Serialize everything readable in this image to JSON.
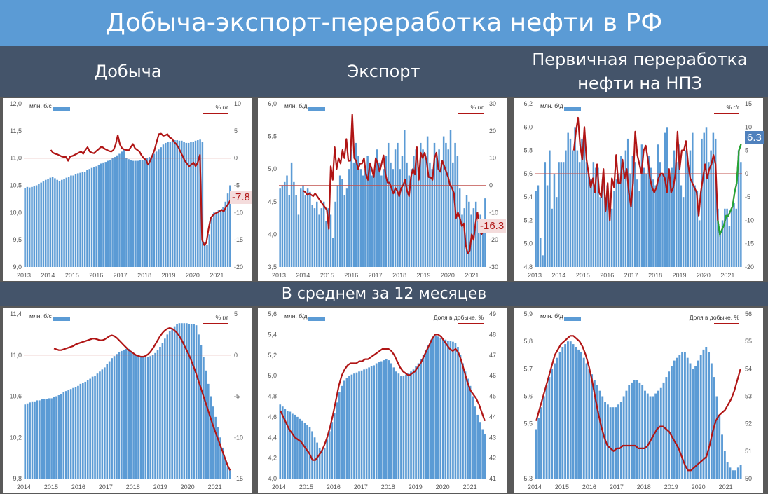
{
  "page_title": "Добыча-экспорт-переработка нефти в РФ",
  "column_titles": [
    "Добыча",
    "Экспорт",
    "Первичная переработка нефти на НПЗ"
  ],
  "band_title": "В среднем за 12 месяцев",
  "colors": {
    "title_bg": "#5b9bd5",
    "header_bg": "#44546a",
    "bars": "#5b9bd5",
    "line": "#b01515",
    "line2": "#21a838",
    "callout_red_bg": "#f4dcdc",
    "callout_blue_bg": "#4f81bd"
  },
  "chart_data": [
    {
      "id": "c1",
      "type": "bar+line",
      "left_label": "млн. б/с",
      "right_label": "% г/г",
      "x_ticks": [
        "2013",
        "2014",
        "2015",
        "2016",
        "2017",
        "2018",
        "2019",
        "2020",
        "2021"
      ],
      "ylim": [
        9.0,
        12.0
      ],
      "y_ticks": [
        9.0,
        9.5,
        10.0,
        10.5,
        11.0,
        11.5,
        12.0
      ],
      "y2lim": [
        -20,
        10
      ],
      "y2_ticks": [
        -20,
        -15,
        -10,
        -5,
        0,
        5,
        10
      ],
      "callout": "-7.8",
      "callout_style": "red",
      "bars": [
        10.45,
        10.47,
        10.46,
        10.47,
        10.48,
        10.5,
        10.52,
        10.55,
        10.57,
        10.6,
        10.62,
        10.64,
        10.65,
        10.63,
        10.6,
        10.58,
        10.6,
        10.62,
        10.64,
        10.66,
        10.68,
        10.68,
        10.7,
        10.72,
        10.73,
        10.74,
        10.75,
        10.78,
        10.8,
        10.82,
        10.84,
        10.85,
        10.88,
        10.9,
        10.92,
        10.93,
        10.95,
        10.97,
        11.0,
        11.02,
        11.05,
        11.08,
        11.12,
        11.15,
        11.0,
        10.98,
        10.96,
        10.95,
        10.95,
        10.95,
        10.96,
        10.97,
        10.98,
        11.0,
        11.02,
        11.05,
        11.08,
        11.12,
        11.16,
        11.2,
        11.25,
        11.28,
        11.3,
        11.3,
        11.32,
        11.33,
        11.33,
        11.32,
        11.32,
        11.3,
        11.28,
        11.28,
        11.3,
        11.3,
        11.32,
        11.33,
        11.34,
        11.3,
        9.45,
        9.4,
        9.6,
        9.9,
        10.0,
        10.0,
        10.05,
        10.05,
        10.1,
        10.2,
        10.35,
        10.5
      ],
      "line": [
        null,
        null,
        null,
        null,
        null,
        null,
        null,
        null,
        null,
        null,
        null,
        null,
        1.5,
        1.0,
        0.8,
        0.7,
        0.5,
        0.3,
        0.2,
        0.2,
        -0.5,
        0.3,
        0.4,
        0.6,
        0.8,
        1.0,
        1.2,
        0.8,
        1.5,
        2.0,
        1.2,
        1.0,
        0.9,
        1.3,
        1.6,
        2.0,
        2.0,
        1.7,
        1.5,
        1.3,
        1.2,
        1.5,
        2.5,
        4.2,
        2.5,
        1.8,
        1.6,
        1.5,
        1.4,
        2.0,
        2.6,
        1.8,
        1.5,
        1.2,
        0.5,
        0.0,
        -0.3,
        -1.2,
        -0.5,
        0.5,
        1.5,
        3.0,
        4.4,
        4.5,
        4.1,
        4.2,
        4.4,
        3.8,
        3.6,
        3.0,
        2.6,
        2.0,
        1.2,
        0.4,
        -0.5,
        -1.0,
        -1.5,
        -1.2,
        -0.8,
        -1.5,
        -0.8,
        0.6,
        -15.0,
        -16.0,
        -15.5,
        -13.0,
        -11.0,
        -10.5,
        -10.2,
        -10.0,
        -9.8,
        -9.5,
        -9.8,
        -9.0,
        -8.5,
        -7.8
      ]
    },
    {
      "id": "c2",
      "type": "bar+line",
      "left_label": "млн. б/д",
      "right_label": "% г/г",
      "x_ticks": [
        "2013",
        "2014",
        "2015",
        "2016",
        "2017",
        "2018",
        "2019",
        "2020",
        "2021"
      ],
      "ylim": [
        3.5,
        6.0
      ],
      "y_ticks": [
        3.5,
        4.0,
        4.5,
        5.0,
        5.5,
        6.0
      ],
      "y2lim": [
        -30,
        30
      ],
      "y2_ticks": [
        -30,
        -20,
        -10,
        0,
        10,
        20,
        30
      ],
      "callout": "-16.3",
      "callout_style": "red",
      "bars": [
        4.7,
        4.75,
        4.8,
        4.9,
        4.6,
        5.1,
        4.8,
        4.6,
        4.3,
        4.7,
        4.75,
        4.6,
        4.7,
        4.65,
        4.45,
        4.4,
        4.5,
        4.3,
        4.4,
        4.5,
        4.2,
        4.4,
        4.3,
        3.95,
        4.5,
        4.75,
        4.9,
        4.85,
        4.6,
        4.7,
        5.0,
        5.3,
        5.1,
        5.4,
        5.2,
        5.0,
        4.9,
        5.0,
        5.2,
        5.1,
        4.9,
        5.0,
        5.3,
        5.1,
        4.9,
        5.0,
        5.2,
        5.4,
        5.1,
        5.0,
        5.3,
        5.4,
        5.0,
        5.2,
        5.6,
        5.1,
        4.9,
        5.0,
        5.2,
        5.3,
        5.0,
        5.4,
        5.3,
        5.2,
        5.5,
        5.1,
        5.0,
        5.4,
        5.2,
        5.3,
        5.1,
        5.5,
        5.4,
        5.3,
        5.6,
        5.1,
        5.4,
        5.2,
        4.7,
        4.3,
        4.4,
        4.6,
        4.5,
        4.3,
        4.4,
        4.5,
        4.2,
        4.3,
        4.1,
        4.55
      ],
      "line": [
        null,
        null,
        null,
        null,
        null,
        null,
        null,
        null,
        null,
        null,
        null,
        null,
        -2,
        -2.5,
        -3.5,
        -3,
        -3.5,
        -4,
        -3,
        -4,
        -5,
        -6,
        -7,
        -8,
        -9,
        -16,
        7,
        2,
        14,
        6,
        10,
        8,
        13,
        10,
        17,
        9,
        9,
        26,
        10,
        9,
        6,
        8,
        8,
        10,
        4,
        2,
        8,
        6,
        3,
        10,
        8,
        5,
        8,
        11,
        4,
        1,
        1,
        -1,
        -3,
        -1,
        -2,
        -4,
        -1,
        0,
        2,
        -2,
        -4,
        3,
        6,
        4,
        14,
        2,
        12,
        10,
        12,
        9,
        3,
        3,
        2,
        10,
        12,
        6,
        5,
        9,
        7,
        5,
        3,
        0,
        -1,
        -3,
        -12,
        -10,
        -12,
        -15,
        -14,
        -22,
        -25,
        -24,
        -18,
        -20,
        -14,
        -10,
        -16,
        -18,
        -17,
        -16.3
      ]
    },
    {
      "id": "c3",
      "type": "bar+line",
      "left_label": "млн. б/д",
      "right_label": "% г/г",
      "x_ticks": [
        "2013",
        "2014",
        "2015",
        "2016",
        "2017",
        "2018",
        "2019",
        "2020",
        "2021"
      ],
      "ylim": [
        4.8,
        6.2
      ],
      "y_ticks": [
        4.8,
        5.0,
        5.2,
        5.4,
        5.6,
        5.8,
        6.0,
        6.2
      ],
      "y2lim": [
        -20,
        15
      ],
      "y2_ticks": [
        -20,
        -15,
        -10,
        -5,
        0,
        5,
        10,
        15
      ],
      "callout": "6.3",
      "callout_style": "blue",
      "bars": [
        5.45,
        5.5,
        5.05,
        4.9,
        5.7,
        5.5,
        5.8,
        5.3,
        5.6,
        5.4,
        5.7,
        5.7,
        5.7,
        5.8,
        5.95,
        5.9,
        5.8,
        6.0,
        5.8,
        5.7,
        5.9,
        5.9,
        5.7,
        5.6,
        5.55,
        5.7,
        5.65,
        5.65,
        5.4,
        5.55,
        5.4,
        5.5,
        5.35,
        5.3,
        5.45,
        5.55,
        5.6,
        5.75,
        5.7,
        5.8,
        5.9,
        5.6,
        5.75,
        5.7,
        5.55,
        5.45,
        5.85,
        5.65,
        5.6,
        5.75,
        5.65,
        5.55,
        5.5,
        5.85,
        5.7,
        5.6,
        5.95,
        6.0,
        5.6,
        5.65,
        5.8,
        5.7,
        5.85,
        5.5,
        5.4,
        5.8,
        5.7,
        5.8,
        5.95,
        5.5,
        5.45,
        5.2,
        5.9,
        5.95,
        6.0,
        5.7,
        5.8,
        5.95,
        5.9,
        5.3,
        5.1,
        5.2,
        5.3,
        5.3,
        5.15,
        5.3,
        5.35,
        5.3,
        5.8,
        5.7
      ],
      "line": [
        null,
        null,
        null,
        null,
        null,
        null,
        null,
        null,
        null,
        null,
        null,
        null,
        null,
        null,
        null,
        null,
        null,
        null,
        5,
        9,
        12,
        6,
        3,
        10,
        3,
        0,
        -3,
        -1,
        -4,
        2,
        -4,
        -5,
        1,
        -8,
        -2,
        -10,
        -1,
        -3,
        4,
        -2,
        -2,
        3,
        -1,
        1,
        -4,
        -7,
        -2,
        9,
        4,
        2,
        0,
        5,
        6,
        3,
        -1,
        -3,
        -4,
        -3,
        -1,
        0,
        0,
        -1,
        -4,
        1,
        -4,
        -3,
        0,
        9,
        1,
        5,
        5,
        7,
        2,
        -1,
        -2,
        -3,
        -4,
        -9,
        -4,
        -1,
        2,
        -1,
        1,
        2,
        4,
        2,
        -10,
        -13,
        -12,
        -11,
        -9,
        -9,
        -8,
        -7,
        -4,
        -2,
        5,
        6.3
      ]
    },
    {
      "id": "c4",
      "type": "bar+line",
      "left_label": "млн. б/с",
      "right_label": "% г/г",
      "x_ticks": [
        "2014",
        "2015",
        "2016",
        "2017",
        "2018",
        "2019",
        "2020",
        "2021"
      ],
      "ylim": [
        9.8,
        11.4
      ],
      "y_ticks": [
        9.8,
        10.2,
        10.6,
        11.0,
        11.4
      ],
      "y2lim": [
        -15,
        5
      ],
      "y2_ticks": [
        -15,
        -10,
        -5,
        0,
        5
      ],
      "bars": [
        10.52,
        10.53,
        10.54,
        10.55,
        10.55,
        10.56,
        10.56,
        10.57,
        10.57,
        10.57,
        10.58,
        10.58,
        10.59,
        10.6,
        10.61,
        10.62,
        10.64,
        10.65,
        10.66,
        10.67,
        10.68,
        10.69,
        10.7,
        10.72,
        10.73,
        10.74,
        10.76,
        10.77,
        10.79,
        10.8,
        10.82,
        10.84,
        10.86,
        10.88,
        10.91,
        10.94,
        10.97,
        10.99,
        11.01,
        11.03,
        11.04,
        11.05,
        11.06,
        11.06,
        11.04,
        11.02,
        11.0,
        10.99,
        10.98,
        10.98,
        10.98,
        10.98,
        10.99,
        11.0,
        11.02,
        11.05,
        11.08,
        11.12,
        11.16,
        11.2,
        11.23,
        11.26,
        11.28,
        11.3,
        11.31,
        11.31,
        11.31,
        11.31,
        11.3,
        11.3,
        11.3,
        11.29,
        11.2,
        11.1,
        10.98,
        10.85,
        10.72,
        10.6,
        10.5,
        10.4,
        10.3,
        10.2,
        10.1,
        10.0,
        9.92,
        9.88
      ],
      "line": [
        null,
        null,
        null,
        null,
        null,
        null,
        null,
        null,
        null,
        null,
        null,
        null,
        0.8,
        0.7,
        0.6,
        0.6,
        0.7,
        0.8,
        0.9,
        1.0,
        1.1,
        1.3,
        1.4,
        1.5,
        1.6,
        1.7,
        1.8,
        1.9,
        2.0,
        2.0,
        1.9,
        1.8,
        1.8,
        1.9,
        2.1,
        2.3,
        2.4,
        2.3,
        2.1,
        1.8,
        1.5,
        1.2,
        0.9,
        0.6,
        0.4,
        0.2,
        0.0,
        -0.1,
        -0.2,
        -0.2,
        -0.1,
        0.1,
        0.4,
        0.8,
        1.3,
        1.8,
        2.3,
        2.7,
        3.0,
        3.2,
        3.3,
        3.2,
        3.0,
        2.7,
        2.3,
        1.8,
        1.2,
        0.6,
        0.0,
        -0.7,
        -1.5,
        -2.3,
        -3.2,
        -4.1,
        -5.0,
        -5.9,
        -6.8,
        -7.7,
        -8.6,
        -9.4,
        -10.2,
        -11.0,
        -11.8,
        -12.6,
        -13.4,
        -14.0
      ]
    },
    {
      "id": "c5",
      "type": "bar+line",
      "left_label": "млн. б/д",
      "right_label": "Доля в добыче, %",
      "x_ticks": [
        "2014",
        "2015",
        "2016",
        "2017",
        "2018",
        "2019",
        "2020",
        "2021"
      ],
      "ylim": [
        4.0,
        5.6
      ],
      "y_ticks": [
        4.0,
        4.2,
        4.4,
        4.6,
        4.8,
        5.0,
        5.2,
        5.4,
        5.6
      ],
      "y2lim": [
        41,
        49
      ],
      "y2_ticks": [
        41,
        42,
        43,
        44,
        45,
        46,
        47,
        48,
        49
      ],
      "bars": [
        4.72,
        4.7,
        4.68,
        4.66,
        4.65,
        4.63,
        4.62,
        4.6,
        4.58,
        4.56,
        4.54,
        4.52,
        4.5,
        4.46,
        4.4,
        4.35,
        4.3,
        4.28,
        4.3,
        4.38,
        4.46,
        4.55,
        4.64,
        4.74,
        4.84,
        4.9,
        4.95,
        4.98,
        5.0,
        5.01,
        5.02,
        5.03,
        5.04,
        5.05,
        5.06,
        5.07,
        5.08,
        5.09,
        5.1,
        5.12,
        5.13,
        5.14,
        5.15,
        5.16,
        5.15,
        5.12,
        5.08,
        5.04,
        5.02,
        5.0,
        5.0,
        5.01,
        5.02,
        5.04,
        5.06,
        5.09,
        5.12,
        5.16,
        5.2,
        5.25,
        5.3,
        5.35,
        5.38,
        5.39,
        5.38,
        5.37,
        5.36,
        5.35,
        5.34,
        5.34,
        5.33,
        5.32,
        5.28,
        5.2,
        5.12,
        5.04,
        4.97,
        4.9,
        4.8,
        4.7,
        4.62,
        4.55,
        4.48,
        4.43
      ],
      "line": [
        44.3,
        44.0,
        43.7,
        43.4,
        43.2,
        43.0,
        42.9,
        42.8,
        42.6,
        42.4,
        42.2,
        41.9,
        41.9,
        42.1,
        42.3,
        42.6,
        43.0,
        43.5,
        44.1,
        44.8,
        45.5,
        46.0,
        46.3,
        46.5,
        46.6,
        46.6,
        46.6,
        46.7,
        46.7,
        46.8,
        46.8,
        46.9,
        47.0,
        47.1,
        47.2,
        47.3,
        47.3,
        47.3,
        47.2,
        47.0,
        46.7,
        46.4,
        46.2,
        46.1,
        46.0,
        46.1,
        46.2,
        46.4,
        46.6,
        46.9,
        47.2,
        47.5,
        47.8,
        48.0,
        48.0,
        47.9,
        47.7,
        47.5,
        47.3,
        47.2,
        47.3,
        47.1,
        46.7,
        46.2,
        45.7,
        45.3,
        45.1,
        44.9,
        44.6,
        44.2,
        43.8
      ]
    },
    {
      "id": "c6",
      "type": "bar+line",
      "left_label": "млн. б/д",
      "right_label": "Доля в добыче, %",
      "x_ticks": [
        "2014",
        "2015",
        "2016",
        "2017",
        "2018",
        "2019",
        "2020",
        "2021"
      ],
      "ylim": [
        5.3,
        5.9
      ],
      "y_ticks": [
        5.3,
        5.5,
        5.6,
        5.7,
        5.8,
        5.9
      ],
      "y2lim": [
        50,
        56
      ],
      "y2_ticks": [
        50,
        51,
        52,
        53,
        54,
        55,
        56
      ],
      "bars": [
        5.48,
        5.52,
        5.56,
        5.6,
        5.64,
        5.67,
        5.7,
        5.72,
        5.74,
        5.76,
        5.78,
        5.79,
        5.8,
        5.8,
        5.79,
        5.78,
        5.77,
        5.76,
        5.74,
        5.72,
        5.7,
        5.68,
        5.66,
        5.64,
        5.62,
        5.6,
        5.58,
        5.57,
        5.56,
        5.56,
        5.56,
        5.57,
        5.58,
        5.6,
        5.62,
        5.64,
        5.65,
        5.66,
        5.66,
        5.65,
        5.64,
        5.62,
        5.61,
        5.6,
        5.6,
        5.61,
        5.62,
        5.63,
        5.65,
        5.67,
        5.69,
        5.71,
        5.73,
        5.74,
        5.75,
        5.76,
        5.76,
        5.74,
        5.72,
        5.7,
        5.71,
        5.73,
        5.75,
        5.77,
        5.78,
        5.76,
        5.72,
        5.67,
        5.6,
        5.53,
        5.46,
        5.4,
        5.36,
        5.34,
        5.33,
        5.33,
        5.34,
        5.35
      ],
      "line": [
        52.1,
        52.5,
        52.9,
        53.3,
        53.7,
        54.1,
        54.5,
        54.7,
        54.9,
        55.0,
        55.1,
        55.2,
        55.2,
        55.1,
        55.0,
        54.8,
        54.5,
        54.1,
        53.6,
        53.0,
        52.4,
        51.9,
        51.5,
        51.2,
        51.1,
        51.0,
        51.1,
        51.1,
        51.2,
        51.2,
        51.2,
        51.2,
        51.2,
        51.1,
        51.1,
        51.1,
        51.2,
        51.4,
        51.6,
        51.8,
        51.9,
        51.9,
        51.8,
        51.7,
        51.5,
        51.3,
        51.1,
        50.8,
        50.5,
        50.3,
        50.3,
        50.4,
        50.5,
        50.6,
        50.7,
        50.8,
        51.2,
        51.7,
        52.1,
        52.3,
        52.4,
        52.5,
        52.7,
        52.9,
        53.2,
        53.6,
        54.0
      ]
    }
  ]
}
